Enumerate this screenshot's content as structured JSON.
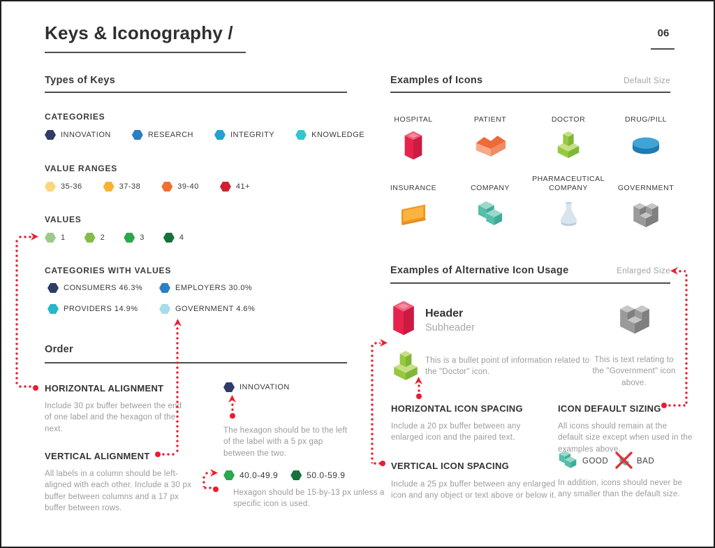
{
  "page": {
    "title": "Keys & Iconography /",
    "number": "06"
  },
  "palette": {
    "accent_red": "#ec1c2e",
    "text_dark": "#3a3a3a",
    "text_gray": "#9b9b9b",
    "rule": "#4d4d4d"
  },
  "types_of_keys": {
    "title": "Types of Keys",
    "categories": {
      "label": "CATEGORIES",
      "items": [
        {
          "label": "INNOVATION",
          "color": "#2e3c68"
        },
        {
          "label": "RESEARCH",
          "color": "#2c7fc2"
        },
        {
          "label": "INTEGRITY",
          "color": "#21a2d1"
        },
        {
          "label": "KNOWLEDGE",
          "color": "#36c5cf"
        }
      ]
    },
    "value_ranges": {
      "label": "VALUE RANGES",
      "items": [
        {
          "label": "35-36",
          "color": "#fad77c"
        },
        {
          "label": "37-38",
          "color": "#f9b233"
        },
        {
          "label": "39-40",
          "color": "#f16f2f"
        },
        {
          "label": "41+",
          "color": "#d0202f"
        }
      ]
    },
    "values": {
      "label": "VALUES",
      "items": [
        {
          "label": "1",
          "color": "#9cca8a"
        },
        {
          "label": "2",
          "color": "#83bc48"
        },
        {
          "label": "3",
          "color": "#2ba74d"
        },
        {
          "label": "4",
          "color": "#17713b"
        }
      ]
    },
    "categories_with_values": {
      "label": "CATEGORIES WITH VALUES",
      "items": [
        {
          "label": "CONSUMERS 46.3%",
          "color": "#2e3c68"
        },
        {
          "label": "EMPLOYERS 30.0%",
          "color": "#2c7fc2"
        },
        {
          "label": "PROVIDERS 14.9%",
          "color": "#27b7c9"
        },
        {
          "label": "GOVERNMENT 4.6%",
          "color": "#a7dbea"
        }
      ]
    }
  },
  "order": {
    "title": "Order",
    "horizontal_alignment": {
      "title": "HORIZONTAL ALIGNMENT",
      "body": "Include 30 px buffer between the end of one label and the hexagon of the next."
    },
    "vertical_alignment": {
      "title": "VERTICAL ALIGNMENT",
      "body": "All labels in a column should be left-aligned with each other. Include a 30 px buffer between columns and a 17 px buffer between rows."
    },
    "innovation_example": {
      "items": [
        {
          "label": "INNOVATION",
          "color": "#2e3c68"
        }
      ],
      "note": "The hexagon should be to the left of the label with a 5 px gap between the two."
    },
    "hexagon_example": {
      "items": [
        {
          "label": "40.0-49.9",
          "color": "#2ba74d"
        },
        {
          "label": "50.0-59.9",
          "color": "#17713b"
        }
      ],
      "note": "Hexagon should be 15-by-13 px unless a specific icon is used."
    }
  },
  "examples_of_icons": {
    "title": "Examples of Icons",
    "size_label": "Default Size",
    "icons": [
      {
        "label": "HOSPITAL",
        "color": "#e7234d"
      },
      {
        "label": "PATIENT",
        "color": "#f08c61"
      },
      {
        "label": "DOCTOR",
        "color": "#94c83d"
      },
      {
        "label": "DRUG/PILL",
        "color": "#2e8fc0"
      },
      {
        "label": "INSURANCE",
        "color": "#fbb440"
      },
      {
        "label": "COMPANY",
        "color": "#55bfa9"
      },
      {
        "label": "PHARMACEUTICAL COMPANY",
        "color": "#d9e5ee"
      },
      {
        "label": "GOVERNMENT",
        "color": "#9a9a9a"
      }
    ]
  },
  "alternative_usage": {
    "title": "Examples of Alternative Icon Usage",
    "size_label": "Enlarged Size",
    "header_example": {
      "header": "Header",
      "subheader": "Subheader"
    },
    "doctor_note": "This is a bullet point of information related to the \"Doctor\" icon.",
    "government_note": "This is text relating to the \"Government\" icon above.",
    "horizontal_icon_spacing": {
      "title": "HORIZONTAL ICON SPACING",
      "body": "Include a 20 px buffer between any enlarged icon and the paired text."
    },
    "vertical_icon_spacing": {
      "title": "VERTICAL ICON SPACING",
      "body": "Include a 25 px buffer between any enlarged icon and any object or text above or below it."
    },
    "icon_default_sizing": {
      "title": "ICON DEFAULT SIZING",
      "body": "All icons should remain at the default size except when used in the examples above.",
      "good_label": "GOOD",
      "bad_label": "BAD",
      "note": "In addition, icons should never be any smaller than the default size."
    }
  }
}
